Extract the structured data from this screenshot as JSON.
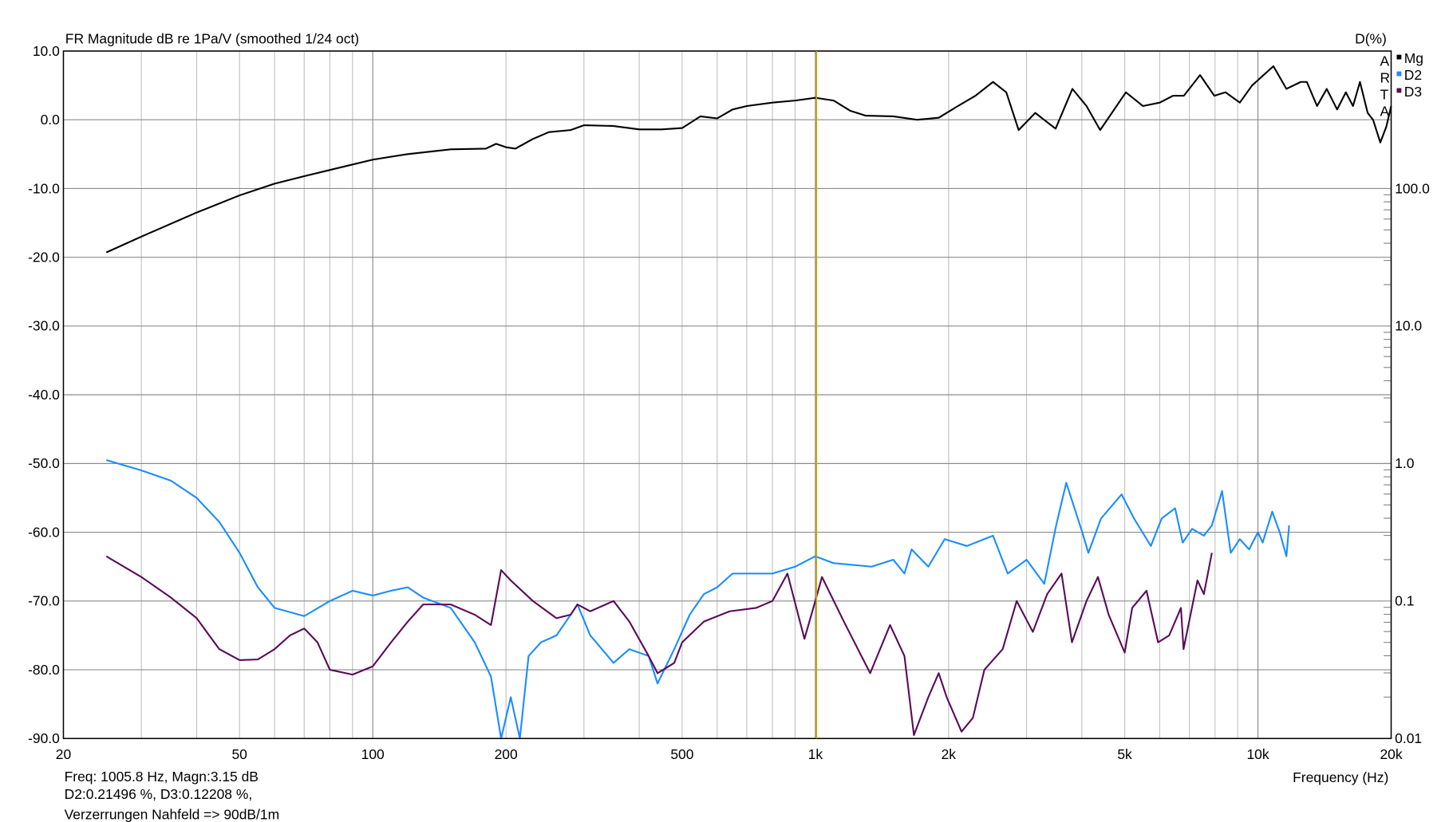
{
  "chart_data": {
    "type": "line",
    "title": "FR Magnitude dB re 1Pa/V (smoothed 1/24 oct)",
    "right_axis_title": "D(%)",
    "xlabel": "Frequency (Hz)",
    "xscale": "log",
    "xlim": [
      20,
      20000
    ],
    "ylim": [
      -90,
      10
    ],
    "grid": true,
    "y_ticks": [
      "10.0",
      "0.0",
      "-10.0",
      "-20.0",
      "-30.0",
      "-40.0",
      "-50.0",
      "-60.0",
      "-70.0",
      "-80.0",
      "-90.0"
    ],
    "y_tick_values": [
      10,
      0,
      -10,
      -20,
      -30,
      -40,
      -50,
      -60,
      -70,
      -80,
      -90
    ],
    "right_ticks": [
      {
        "label": "100.0",
        "db": -10
      },
      {
        "label": "10.0",
        "db": -30
      },
      {
        "label": "1.0",
        "db": -50
      },
      {
        "label": "0.1",
        "db": -70
      },
      {
        "label": "0.01",
        "db": -90
      }
    ],
    "x_ticks": [
      {
        "label": "20",
        "f": 20
      },
      {
        "label": "50",
        "f": 50
      },
      {
        "label": "100",
        "f": 100
      },
      {
        "label": "200",
        "f": 200
      },
      {
        "label": "500",
        "f": 500
      },
      {
        "label": "1k",
        "f": 1000
      },
      {
        "label": "2k",
        "f": 2000
      },
      {
        "label": "5k",
        "f": 5000
      },
      {
        "label": "10k",
        "f": 10000
      },
      {
        "label": "20k",
        "f": 20000
      }
    ],
    "cursor_freq": 1005.8,
    "legend_position": "top-right",
    "brand_letters": [
      "A",
      "R",
      "T",
      "A"
    ],
    "series": [
      {
        "name": "Mg",
        "color": "#000000",
        "f": [
          25,
          30,
          40,
          50,
          60,
          70,
          80,
          100,
          120,
          150,
          180,
          190,
          200,
          210,
          230,
          250,
          280,
          300,
          350,
          400,
          450,
          500,
          550,
          600,
          650,
          700,
          800,
          900,
          1000,
          1100,
          1200,
          1300,
          1500,
          1700,
          1900,
          2100,
          2300,
          2520,
          2700,
          2880,
          3140,
          3490,
          3810,
          4100,
          4400,
          5030,
          5500,
          6000,
          6430,
          6800,
          7400,
          7970,
          8450,
          9100,
          9700,
          10840,
          11600,
          12500,
          12900,
          13600,
          14300,
          15100,
          15800,
          16400,
          17000,
          17700,
          18200,
          18900,
          19500,
          20000
        ],
        "y": [
          -19.3,
          -17,
          -13.5,
          -11,
          -9.3,
          -8.2,
          -7.3,
          -5.8,
          -5,
          -4.3,
          -4.2,
          -3.5,
          -4.0,
          -4.2,
          -2.8,
          -1.8,
          -1.5,
          -0.8,
          -0.9,
          -1.4,
          -1.4,
          -1.2,
          0.5,
          0.2,
          1.5,
          2,
          2.5,
          2.8,
          3.2,
          2.8,
          1.3,
          0.6,
          0.5,
          0,
          0.3,
          2,
          3.5,
          5.5,
          4,
          -1.5,
          1,
          -1.3,
          4.5,
          2,
          -1.5,
          4,
          2,
          2.5,
          3.5,
          3.5,
          6.5,
          3.5,
          4,
          2.5,
          5,
          7.8,
          4.5,
          5.5,
          5.5,
          2,
          4.5,
          1.5,
          4,
          2,
          5.5,
          1,
          0,
          -3.3,
          -1,
          2
        ]
      },
      {
        "name": "D2",
        "color": "#1a8cff",
        "f": [
          25,
          30,
          35,
          40,
          45,
          50,
          55,
          60,
          70,
          80,
          90,
          100,
          110,
          120,
          130,
          150,
          170,
          185,
          195,
          205,
          215,
          225,
          240,
          260,
          280,
          290,
          310,
          350,
          380,
          420,
          440,
          480,
          520,
          560,
          600,
          650,
          700,
          800,
          900,
          1000,
          1100,
          1340,
          1500,
          1590,
          1650,
          1800,
          1960,
          2200,
          2520,
          2720,
          3000,
          3290,
          3500,
          3690,
          4010,
          4140,
          4420,
          4920,
          5250,
          5730,
          6060,
          6500,
          6760,
          7100,
          7550,
          7870,
          8300,
          8680,
          9100,
          9550,
          10000,
          10250,
          10770,
          11200,
          11600,
          11760
        ],
        "y": [
          -49.5,
          -51,
          -52.5,
          -55,
          -58.5,
          -63,
          -68,
          -71,
          -72.2,
          -70,
          -68.5,
          -69.2,
          -68.5,
          -68,
          -69.5,
          -71,
          -76,
          -81,
          -90,
          -84,
          -90,
          -78,
          -76,
          -75,
          -72,
          -70.5,
          -75,
          -79,
          -77,
          -78,
          -82,
          -77,
          -72,
          -69,
          -68,
          -66,
          -66,
          -66,
          -65,
          -63.5,
          -64.5,
          -65,
          -64,
          -66,
          -62.5,
          -65,
          -61,
          -62,
          -60.5,
          -66,
          -64,
          -67.5,
          -59,
          -52.8,
          -60,
          -63,
          -58,
          -54.5,
          -58,
          -62,
          -58,
          -56.5,
          -61.5,
          -59.5,
          -60.5,
          -59,
          -54,
          -63,
          -61,
          -62.5,
          -60,
          -61.5,
          -57,
          -60,
          -63.5,
          -59
        ]
      },
      {
        "name": "D3",
        "color": "#5a0a5a",
        "f": [
          25,
          30,
          35,
          40,
          45,
          50,
          55,
          60,
          65,
          70,
          75,
          80,
          90,
          100,
          110,
          120,
          130,
          150,
          170,
          185,
          195,
          205,
          230,
          260,
          280,
          290,
          310,
          350,
          380,
          420,
          440,
          480,
          500,
          560,
          640,
          735,
          800,
          865,
          945,
          1000,
          1035,
          1160,
          1330,
          1475,
          1590,
          1670,
          1800,
          1900,
          1980,
          2140,
          2270,
          2410,
          2650,
          2850,
          3100,
          3340,
          3600,
          3800,
          4100,
          4350,
          4600,
          5000,
          5200,
          5600,
          5950,
          6300,
          6700,
          6790,
          7300,
          7550,
          7870
        ],
        "y": [
          -63.5,
          -66.5,
          -69.5,
          -72.5,
          -77,
          -78.6,
          -78.5,
          -77,
          -75,
          -74,
          -76,
          -80,
          -80.7,
          -79.5,
          -76,
          -73,
          -70.5,
          -70.5,
          -72,
          -73.5,
          -65.5,
          -67,
          -70,
          -72.5,
          -72,
          -70.5,
          -71.5,
          -70,
          -73,
          -78,
          -80.5,
          -79,
          -76,
          -73,
          -71.5,
          -71,
          -70,
          -66,
          -75.5,
          -70,
          -66.5,
          -73,
          -80.5,
          -73.5,
          -78,
          -89.5,
          -84,
          -80.5,
          -84,
          -89,
          -87,
          -80,
          -77,
          -70,
          -74.5,
          -69,
          -66,
          -76,
          -70,
          -66.5,
          -72,
          -77.5,
          -71,
          -68.5,
          -76,
          -75,
          -71,
          -77,
          -67,
          -69,
          -63
        ]
      }
    ]
  },
  "readout": {
    "line1": "Freq: 1005.8 Hz, Magn:3.15 dB",
    "line2": "D2:0.21496 %, D3:0.12208 %,",
    "line3": "Verzerrungen Nahfeld => 90dB/1m"
  }
}
